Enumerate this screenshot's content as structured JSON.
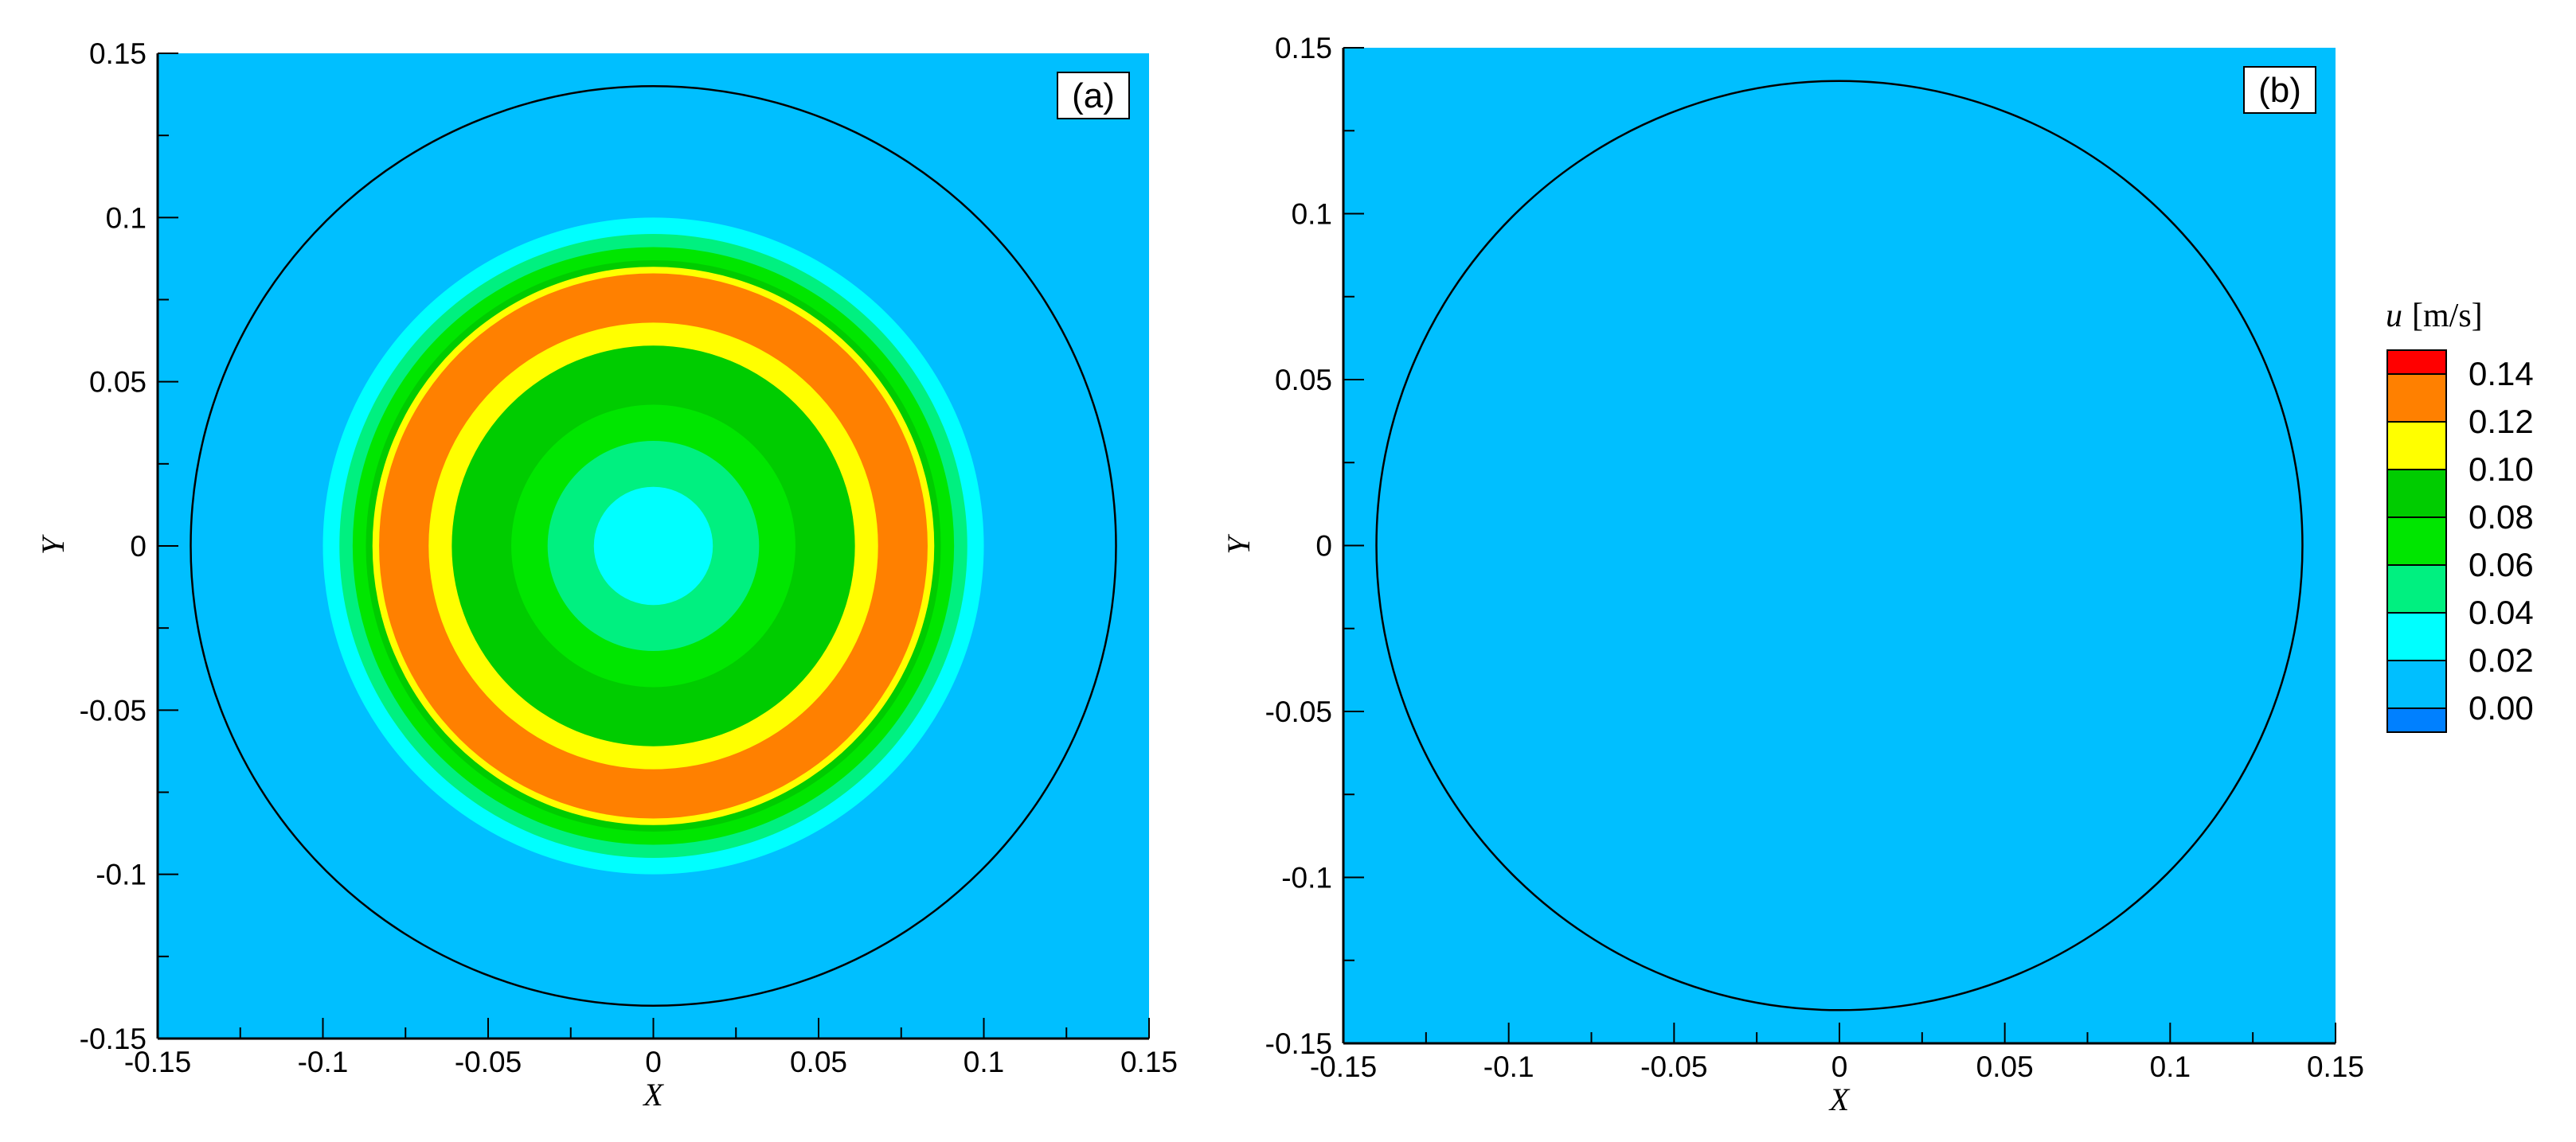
{
  "chart_data": [
    {
      "type": "contour",
      "panel_label": "(a)",
      "xlabel": "X",
      "ylabel": "Y",
      "xlim": [
        -0.15,
        0.15
      ],
      "ylim": [
        -0.15,
        0.15
      ],
      "x_ticks": [
        "-0.15",
        "-0.1",
        "-0.05",
        "0",
        "0.05",
        "0.1",
        "0.15"
      ],
      "y_ticks": [
        "-0.15",
        "-0.1",
        "-0.05",
        "0",
        "0.05",
        "0.1",
        "0.15"
      ],
      "background_level": 0.02,
      "boundary_circle_radius": 0.14,
      "bands": [
        {
          "outer_r": 0.1,
          "level": 0.04
        },
        {
          "outer_r": 0.095,
          "level": 0.06
        },
        {
          "outer_r": 0.091,
          "level": 0.08
        },
        {
          "outer_r": 0.087,
          "level": 0.1
        },
        {
          "outer_r": 0.085,
          "level": 0.12
        },
        {
          "outer_r": 0.083,
          "level": 0.14
        },
        {
          "outer_r": 0.068,
          "level": 0.12
        },
        {
          "outer_r": 0.061,
          "level": 0.1
        },
        {
          "outer_r": 0.043,
          "level": 0.08
        },
        {
          "outer_r": 0.032,
          "level": 0.06
        },
        {
          "outer_r": 0.018,
          "level": 0.04
        },
        {
          "outer_r": 0.0,
          "level": 0.02
        }
      ]
    },
    {
      "type": "contour",
      "panel_label": "(b)",
      "xlabel": "X",
      "ylabel": "Y",
      "xlim": [
        -0.15,
        0.15
      ],
      "ylim": [
        -0.15,
        0.15
      ],
      "x_ticks": [
        "-0.15",
        "-0.1",
        "-0.05",
        "0",
        "0.05",
        "0.1",
        "0.15"
      ],
      "y_ticks": [
        "-0.15",
        "-0.1",
        "-0.05",
        "0",
        "0.05",
        "0.1",
        "0.15"
      ],
      "background_level": 0.02,
      "boundary_circle_radius": 0.14,
      "bands": []
    }
  ],
  "legend": {
    "title_var": "u",
    "title_unit": "[m/s]",
    "levels": [
      {
        "label": "0.14",
        "value": 0.14,
        "color": "#ff8000"
      },
      {
        "label": "0.12",
        "value": 0.12,
        "color": "#ffff00"
      },
      {
        "label": "0.10",
        "value": 0.1,
        "color": "#00cc00"
      },
      {
        "label": "0.08",
        "value": 0.08,
        "color": "#00e600"
      },
      {
        "label": "0.06",
        "value": 0.06,
        "color": "#00f080"
      },
      {
        "label": "0.04",
        "value": 0.04,
        "color": "#00ffff"
      },
      {
        "label": "0.02",
        "value": 0.02,
        "color": "#00bfff"
      },
      {
        "label": "0.00",
        "value": 0.0,
        "color": "#0080ff"
      }
    ],
    "top_color": "#ff0000",
    "bottom_color": "#0080ff"
  }
}
